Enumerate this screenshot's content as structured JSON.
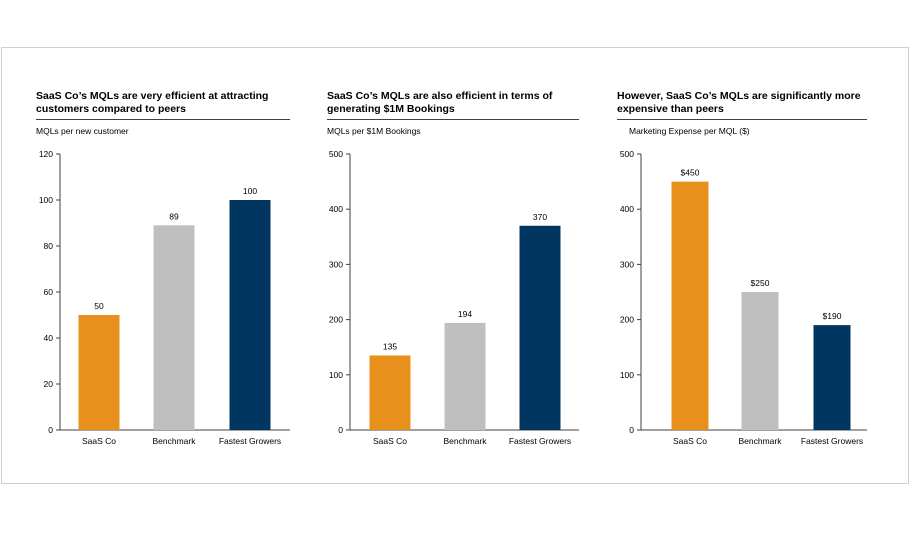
{
  "colors": {
    "orange": "#E8901C",
    "gray": "#BFBFBF",
    "navy": "#003660",
    "axis": "#404040"
  },
  "chart_data": [
    {
      "type": "bar",
      "title": "SaaS Co’s MQLs are very efficient at attracting customers compared to peers",
      "ylabel": "MQLs per new customer",
      "categories": [
        "SaaS Co",
        "Benchmark",
        "Fastest Growers"
      ],
      "values": [
        50,
        89,
        100
      ],
      "data_labels": [
        "50",
        "89",
        "100"
      ],
      "bar_colors": [
        "orange",
        "gray",
        "navy"
      ],
      "ylim": [
        0,
        120
      ],
      "yticks": [
        0,
        20,
        40,
        60,
        80,
        100,
        120
      ],
      "ytick_labels": [
        "0",
        "20",
        "40",
        "60",
        "80",
        "100",
        "120"
      ]
    },
    {
      "type": "bar",
      "title": "SaaS Co’s MQLs are also efficient in terms of generating $1M Bookings",
      "ylabel": "MQLs per $1M Bookings",
      "categories": [
        "SaaS Co",
        "Benchmark",
        "Fastest Growers"
      ],
      "values": [
        135,
        194,
        370
      ],
      "data_labels": [
        "135",
        "194",
        "370"
      ],
      "bar_colors": [
        "orange",
        "gray",
        "navy"
      ],
      "ylim": [
        0,
        500
      ],
      "yticks": [
        0,
        100,
        200,
        300,
        400,
        500
      ],
      "ytick_labels": [
        "0",
        "100",
        "200",
        "300",
        "400",
        "500"
      ]
    },
    {
      "type": "bar",
      "title": "However, SaaS Co’s MQLs are significantly more expensive than peers",
      "ylabel": "Marketing Expense per MQL ($)",
      "categories": [
        "SaaS Co",
        "Benchmark",
        "Fastest Growers"
      ],
      "values": [
        450,
        250,
        190
      ],
      "data_labels": [
        "$450",
        "$250",
        "$190"
      ],
      "bar_colors": [
        "orange",
        "gray",
        "navy"
      ],
      "ylim": [
        0,
        500
      ],
      "yticks": [
        0,
        100,
        200,
        300,
        400,
        500
      ],
      "ytick_labels": [
        "0",
        "100",
        "200",
        "300",
        "400",
        "500"
      ]
    }
  ]
}
